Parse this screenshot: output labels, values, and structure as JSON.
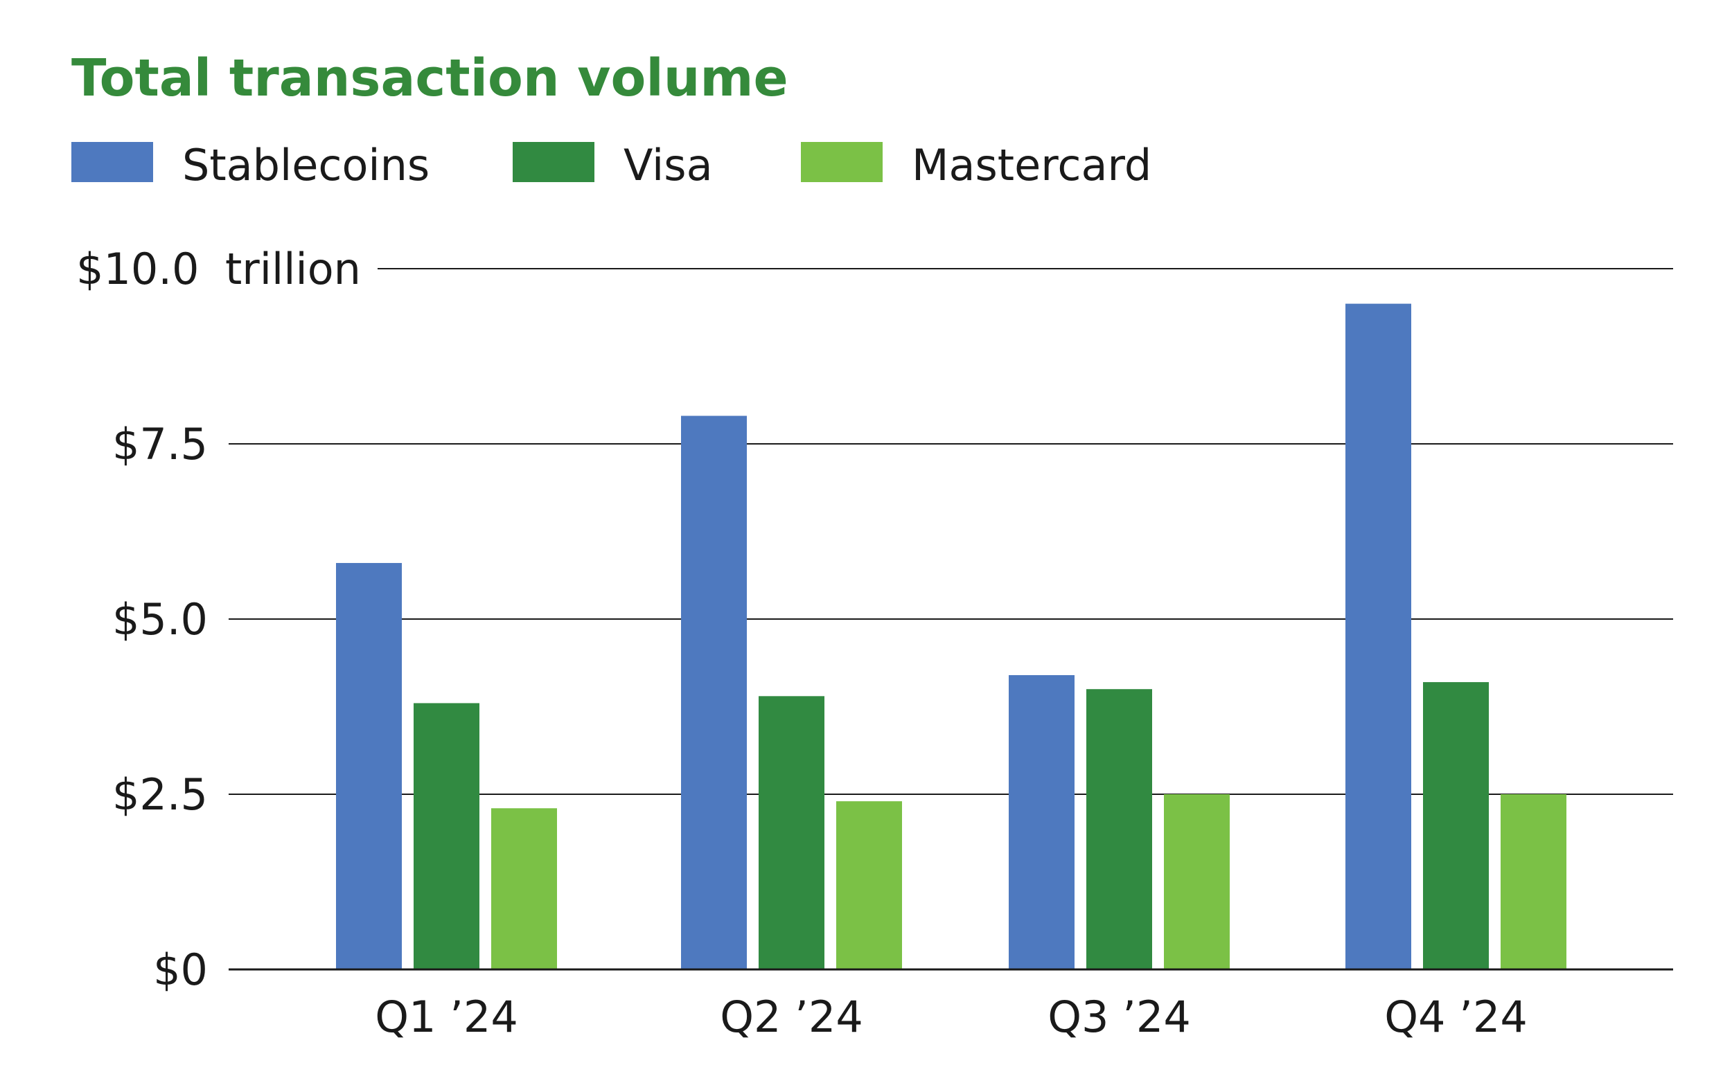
{
  "chart_data": {
    "type": "bar",
    "title": "Total transaction volume",
    "unit_label": "trillion",
    "categories": [
      "Q1 ’24",
      "Q2 ’24",
      "Q3 ’24",
      "Q4 ’24"
    ],
    "series": [
      {
        "name": "Stablecoins",
        "color": "#4e79bf",
        "values": [
          5.8,
          7.9,
          4.2,
          9.5
        ]
      },
      {
        "name": "Visa",
        "color": "#318a41",
        "values": [
          3.8,
          3.9,
          4.0,
          4.1
        ]
      },
      {
        "name": "Mastercard",
        "color": "#7bc146",
        "values": [
          2.3,
          2.4,
          2.5,
          2.5
        ]
      }
    ],
    "y_ticks": [
      {
        "value": 0,
        "label": "$0"
      },
      {
        "value": 2.5,
        "label": "$2.5"
      },
      {
        "value": 5,
        "label": "$5.0"
      },
      {
        "value": 7.5,
        "label": "$7.5"
      },
      {
        "value": 10,
        "label": "$10.0"
      }
    ],
    "ylim": [
      0,
      10
    ],
    "grid": true,
    "legend_position": "top-left",
    "title_color": "#358a3b"
  }
}
